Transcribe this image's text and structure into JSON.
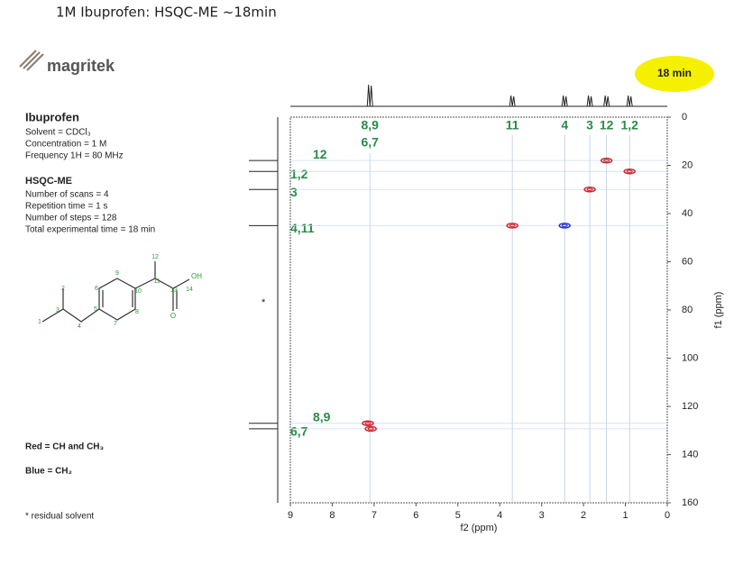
{
  "header": {
    "title": "1M Ibuprofen: HSQC-ME ~18min"
  },
  "logo": "magritek",
  "badge": "18 min",
  "sample": {
    "name": "Ibuprofen",
    "lines": [
      "Solvent = CDCl₃",
      "Concentration = 1 M",
      "Frequency 1H = 80 MHz"
    ]
  },
  "experiment": {
    "name": "HSQC-ME",
    "lines": [
      "Number of scans = 4",
      "Repetition time = 1 s",
      "Number of steps = 128",
      "Total experimental time = 18 min"
    ]
  },
  "structure": {
    "atoms": [
      "1",
      "2",
      "3",
      "4",
      "5",
      "6",
      "7",
      "8",
      "9",
      "10",
      "11",
      "12",
      "13",
      "14",
      "OH",
      "O"
    ]
  },
  "legend": {
    "red": "Red = CH and CH₃",
    "blue": "Blue = CH₂"
  },
  "asterisk": "*",
  "footnote": "* residual solvent",
  "chart_data": {
    "type": "scatter",
    "xlabel": "f2 (ppm)",
    "ylabel": "f1 (ppm)",
    "xlim": [
      9,
      0
    ],
    "ylim": [
      0,
      160
    ],
    "xticks": [
      9,
      8,
      7,
      6,
      5,
      4,
      3,
      2,
      1,
      0
    ],
    "yticks": [
      0,
      20,
      40,
      60,
      80,
      100,
      120,
      140,
      160
    ],
    "series": [
      {
        "color": "#d0282e",
        "x": [
          7.15,
          7.08,
          3.7,
          1.85,
          1.45,
          0.9
        ],
        "values": [
          127,
          129.3,
          45,
          30,
          18,
          22.5
        ]
      },
      {
        "color": "#2a35c8",
        "x": [
          2.45
        ],
        "values": [
          45
        ]
      }
    ],
    "top_labels": [
      {
        "text": "8,9",
        "x": 7.1
      },
      {
        "text": "6,7",
        "x": 7.1
      },
      {
        "text": "11",
        "x": 3.7
      },
      {
        "text": "4",
        "x": 2.45
      },
      {
        "text": "3",
        "x": 1.85
      },
      {
        "text": "12",
        "x": 1.45
      },
      {
        "text": "1,2",
        "x": 0.9
      }
    ],
    "left_labels": [
      {
        "text": "12",
        "y": 18
      },
      {
        "text": "1,2",
        "y": 22.5
      },
      {
        "text": "3",
        "y": 30
      },
      {
        "text": "4,11",
        "y": 45
      },
      {
        "text": "8,9",
        "y": 127
      },
      {
        "text": "6,7",
        "y": 129.3
      }
    ]
  }
}
